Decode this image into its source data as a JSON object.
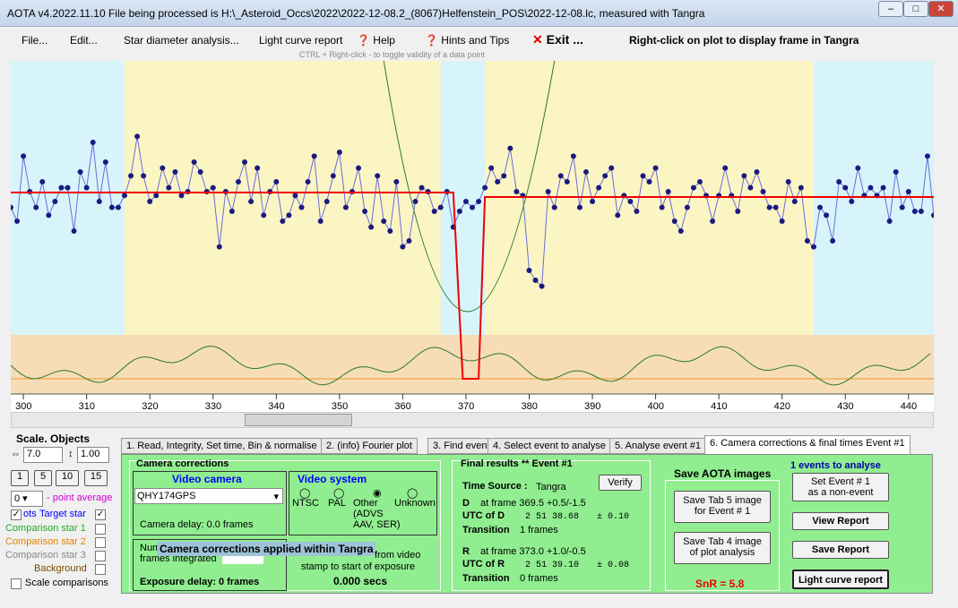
{
  "window": {
    "title": "AOTA v4.2022.11.10   File being processed is H:\\_Asteroid_Occs\\2022\\2022-12-08.2_(8067)Helfenstein_POS\\2022-12-08.lc, measured with Tangra"
  },
  "menu": {
    "file": "File...",
    "edit": "Edit...",
    "star": "Star diameter analysis...",
    "lcr": "Light curve report",
    "help": "Help",
    "hints": "Hints and Tips",
    "exit": "Exit ...",
    "rc": "Right-click on plot to display frame in Tangra",
    "hint": "CTRL + Right-click  -  to toggle validity of a data point"
  },
  "chart_data": {
    "type": "line",
    "xlim": [
      298,
      444
    ],
    "xticks": [
      300,
      310,
      320,
      330,
      340,
      350,
      360,
      370,
      380,
      390,
      400,
      410,
      420,
      430,
      440
    ],
    "series": [
      {
        "values": [
          0.62,
          0.55,
          0.88,
          0.7,
          0.62,
          0.75,
          0.58,
          0.65,
          0.72,
          0.72,
          0.5,
          0.8,
          0.72,
          0.95,
          0.65,
          0.85,
          0.62,
          0.62,
          0.68,
          0.78,
          0.98,
          0.78,
          0.65,
          0.68,
          0.82,
          0.72,
          0.8,
          0.68,
          0.7,
          0.85,
          0.8,
          0.7,
          0.72,
          0.42,
          0.7,
          0.6,
          0.75,
          0.85,
          0.65,
          0.82,
          0.58,
          0.7,
          0.75,
          0.55,
          0.58,
          0.68,
          0.62,
          0.75,
          0.88,
          0.55,
          0.65,
          0.78,
          0.9,
          0.62,
          0.7,
          0.82,
          0.6,
          0.52,
          0.78,
          0.55,
          0.5,
          0.75,
          0.42,
          0.45,
          0.65,
          0.72,
          0.7,
          0.6,
          0.62,
          0.7,
          0.52,
          0.6,
          0.65,
          0.62,
          0.65,
          0.72,
          0.82,
          0.75,
          0.78,
          0.92,
          0.7,
          0.68,
          0.3,
          0.25,
          0.22,
          0.7,
          0.62,
          0.78,
          0.75,
          0.88,
          0.62,
          0.8,
          0.65,
          0.72,
          0.78,
          0.82,
          0.58,
          0.68,
          0.65,
          0.6,
          0.78,
          0.75,
          0.82,
          0.62,
          0.7,
          0.55,
          0.5,
          0.62,
          0.72,
          0.75,
          0.68,
          0.55,
          0.68,
          0.82,
          0.68,
          0.6,
          0.78,
          0.72,
          0.8,
          0.7,
          0.62,
          0.62,
          0.55,
          0.75,
          0.65,
          0.72,
          0.45,
          0.42,
          0.62,
          0.58,
          0.45,
          0.75,
          0.72,
          0.65,
          0.82,
          0.68,
          0.72,
          0.68,
          0.72,
          0.55,
          0.8,
          0.62,
          0.7,
          0.6,
          0.6,
          0.88,
          0.58,
          0.65,
          0.55,
          0.68,
          0.62,
          0.78,
          0.7
        ]
      }
    ]
  },
  "scale": {
    "title": "Scale.  Objects",
    "v1": "7.0",
    "v2": "1.00",
    "b": [
      "1",
      "5",
      "10",
      "15"
    ],
    "avg_val": "0",
    "avg": "- point average",
    "plots": "ots",
    "target": "Target star",
    "c1": "Comparison star 1",
    "c2": "Comparison star 2",
    "c3": "Comparison star 3",
    "bg": "Background",
    "sc": "Scale comparisons"
  },
  "tabs": [
    "1.  Read, Integrity, Set time, Bin & normalise",
    "2. (info)  Fourier plot",
    "3. Find events",
    "4. Select event to analyse",
    "5. Analyse event #1",
    "6. Camera corrections & final times Event #1"
  ],
  "cam": {
    "title": "Camera corrections",
    "vc": "Video camera",
    "model": "QHY174GPS",
    "delay": "Camera delay: 0.0 frames",
    "vs": "Video system",
    "ntsc": "NTSC",
    "pal": "PAL",
    "other": "Other\n(ADVS\nAAV, SER)",
    "unk": "Unknown",
    "num": "Num",
    "fi": "frames integrated",
    "banner": "Camera corrections applied within Tangra",
    "from": "from video",
    "stamp": "stamp to start of exposure",
    "exp": "Exposure delay: 0 frames",
    "secs": "0.000 secs"
  },
  "fin": {
    "title": "Final results",
    "stars": "**",
    "ev": "Event #1",
    "verify": "Verify",
    "ts": "Time Source :",
    "tangra": "Tangra",
    "d1": "D",
    "d2": "at frame 369.5  +0.5/-1.5",
    "dutc": "UTC of D",
    "dval": "2 51 38.68",
    "derr": "± 0.10",
    "dtr": "Transition",
    "dtv": "1 frames",
    "r1": "R",
    "r2": "at frame 373.0  +1.0/-0.5",
    "rutc": "UTC of R",
    "rval": "2 51 39.10",
    "rerr": "± 0.08",
    "rtr": "Transition",
    "rtv": "0 frames"
  },
  "save": {
    "title": "Save AOTA images",
    "b1": "Save Tab 5 image\nfor Event # 1",
    "b2": "Save Tab 4 image\nof plot analysis",
    "snr": "SnR = 5.8"
  },
  "right": {
    "ea": "1  events to analyse",
    "se": "Set Event # 1\nas a non-event",
    "vr": "View Report",
    "sr": "Save Report",
    "lc": "Light curve report"
  }
}
